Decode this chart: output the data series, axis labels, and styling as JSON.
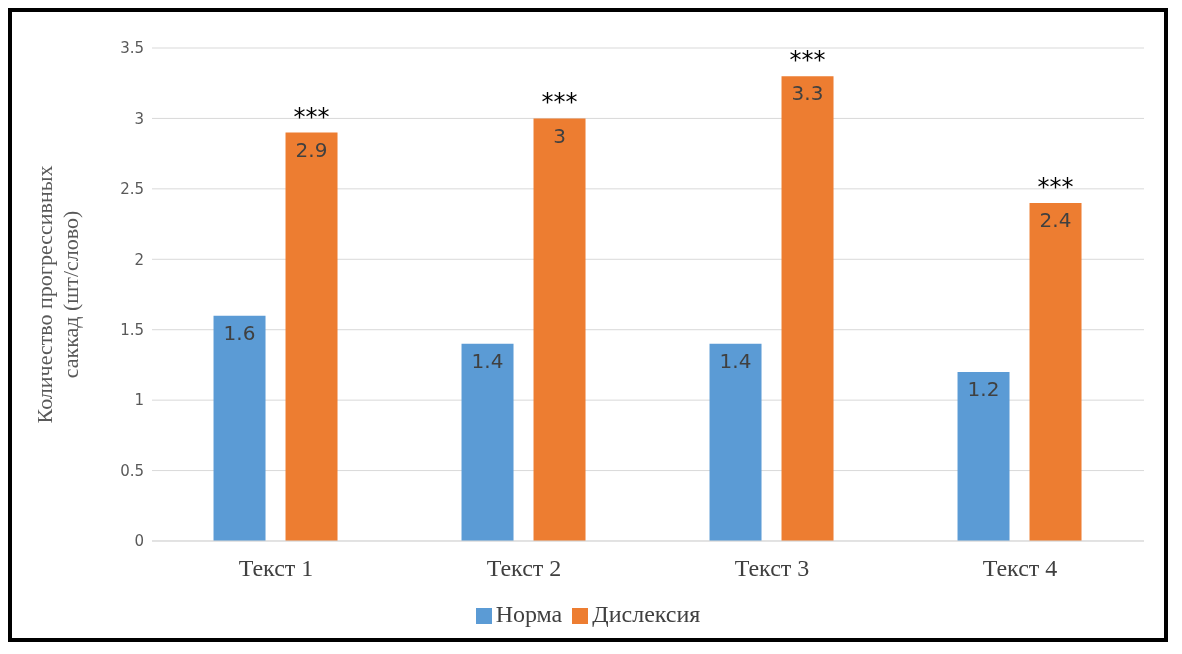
{
  "chart_data": {
    "type": "bar",
    "ylabel": "Количество прогрессивных саккад (шт/слово)",
    "categories": [
      "Текст 1",
      "Текст 2",
      "Текст 3",
      "Текст 4"
    ],
    "series": [
      {
        "name": "Норма",
        "color": "#5b9bd5",
        "values": [
          1.6,
          1.4,
          1.4,
          1.2
        ]
      },
      {
        "name": "Дислексия",
        "color": "#ed7d31",
        "values": [
          2.9,
          3,
          3.3,
          2.4
        ]
      }
    ],
    "ylim": [
      0,
      3.5
    ],
    "yticks": [
      0,
      0.5,
      1,
      1.5,
      2,
      2.5,
      3,
      3.5
    ],
    "grid": "y",
    "legend": "bottom",
    "data_labels": true,
    "annotations": [
      "***",
      "***",
      "***",
      "***"
    ]
  }
}
